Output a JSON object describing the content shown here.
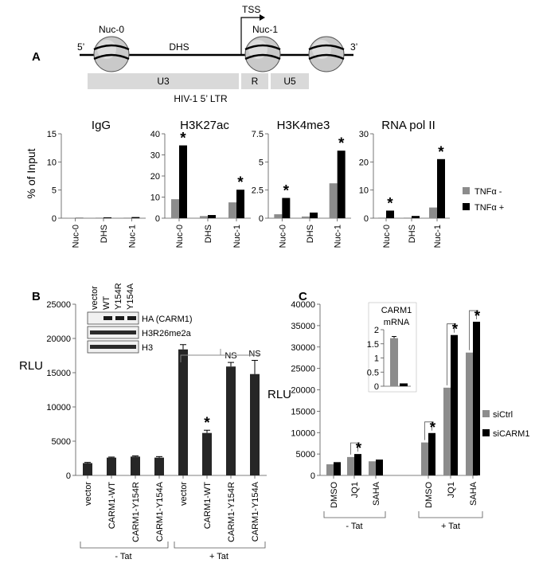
{
  "panels": {
    "A": "A",
    "B": "B",
    "C": "C"
  },
  "diagram": {
    "five_prime": "5’",
    "three_prime": "3’",
    "nucleosomes": [
      "Nuc-0",
      "Nuc-1"
    ],
    "dhs": "DHS",
    "tss": "TSS",
    "segments": [
      "U3",
      "R",
      "U5"
    ],
    "ltr_label": "HIV-1 5’ LTR"
  },
  "colors": {
    "gray": "#8c8c8c",
    "black": "#000000"
  },
  "chart_data": [
    {
      "type": "bar",
      "title": "IgG",
      "ylabel": "% of Input",
      "ylim": [
        0,
        15
      ],
      "yticks": [
        0,
        5,
        10,
        15
      ],
      "categories": [
        "Nuc-0",
        "DHS",
        "Nuc-1"
      ],
      "series": [
        {
          "name": "TNFα -",
          "values": [
            0.05,
            0.1,
            0.1
          ]
        },
        {
          "name": "TNFα +",
          "values": [
            0.05,
            0.15,
            0.2
          ]
        }
      ],
      "significant": [],
      "legend": "right"
    },
    {
      "type": "bar",
      "title": "H3K27ac",
      "ylim": [
        0,
        40
      ],
      "yticks": [
        0,
        10,
        20,
        30,
        40
      ],
      "categories": [
        "Nuc-0",
        "DHS",
        "Nuc-1"
      ],
      "series": [
        {
          "name": "TNFα -",
          "values": [
            9,
            1,
            7.5
          ]
        },
        {
          "name": "TNFα +",
          "values": [
            34.5,
            1.5,
            13.5
          ]
        }
      ],
      "significant": [
        "Nuc-0",
        "Nuc-1"
      ]
    },
    {
      "type": "bar",
      "title": "H3K4me3",
      "ylim": [
        0,
        7.5
      ],
      "yticks": [
        0,
        2.5,
        5,
        7.5
      ],
      "categories": [
        "Nuc-0",
        "DHS",
        "Nuc-1"
      ],
      "series": [
        {
          "name": "TNFα -",
          "values": [
            0.35,
            0.15,
            3.1
          ]
        },
        {
          "name": "TNFα +",
          "values": [
            1.8,
            0.5,
            6.0
          ]
        }
      ],
      "significant": [
        "Nuc-0",
        "Nuc-1"
      ]
    },
    {
      "type": "bar",
      "title": "RNA pol II",
      "ylim": [
        0,
        30
      ],
      "yticks": [
        0,
        10,
        20,
        30
      ],
      "categories": [
        "Nuc-0",
        "DHS",
        "Nuc-1"
      ],
      "series": [
        {
          "name": "TNFα -",
          "values": [
            0.2,
            0.2,
            3.8
          ]
        },
        {
          "name": "TNFα +",
          "values": [
            2.7,
            0.8,
            21
          ]
        }
      ],
      "significant": [
        "Nuc-0",
        "Nuc-1"
      ]
    },
    {
      "type": "bar",
      "ylabel": "RLU",
      "ylim": [
        0,
        25000
      ],
      "yticks": [
        0,
        5000,
        10000,
        15000,
        20000,
        25000
      ],
      "categories": [
        "vector",
        "CARM1-WT",
        "CARM1-Y154R",
        "CARM1-Y154A",
        "vector",
        "CARM1-WT",
        "CARM1-Y154R",
        "CARM1-Y154A"
      ],
      "values": [
        1800,
        2600,
        2750,
        2600,
        18400,
        6200,
        15900,
        14800
      ],
      "errors": [
        100,
        80,
        100,
        150,
        700,
        400,
        600,
        2000
      ],
      "groups": [
        {
          "label": "- Tat",
          "size": 4
        },
        {
          "label": "+ Tat",
          "size": 4
        }
      ],
      "significance": [
        "",
        "",
        "",
        "",
        "",
        "*",
        "NS",
        "NS"
      ],
      "blot": {
        "lanes": [
          "vector",
          "WT",
          "Y154R",
          "Y154A"
        ],
        "rows": [
          "HA (CARM1)",
          "H3R26me2a",
          "H3"
        ]
      }
    },
    {
      "type": "bar",
      "ylabel": "RLU",
      "ylim": [
        0,
        40000
      ],
      "yticks": [
        0,
        5000,
        10000,
        15000,
        20000,
        25000,
        30000,
        35000,
        40000
      ],
      "categories": [
        "DMSO",
        "JQ1",
        "SAHA",
        "DMSO",
        "JQ1",
        "SAHA"
      ],
      "groups": [
        {
          "label": "- Tat",
          "size": 3
        },
        {
          "label": "+ Tat",
          "size": 3
        }
      ],
      "series": [
        {
          "name": "siCtrl",
          "values": [
            2600,
            4300,
            3300,
            7700,
            20500,
            28700
          ]
        },
        {
          "name": "siCARM1",
          "values": [
            3100,
            5000,
            3700,
            9900,
            32800,
            35900
          ]
        }
      ],
      "significant": [
        "JQ1",
        "DMSO",
        "JQ1",
        "SAHA"
      ],
      "legend": "right"
    },
    {
      "type": "bar",
      "title": "CARM1\nmRNA",
      "ylim": [
        0,
        2
      ],
      "yticks": [
        0,
        0.5,
        1,
        1.5,
        2
      ],
      "categories": [
        "siCtrl",
        "siCARM1"
      ],
      "values": [
        1.7,
        0.1
      ]
    }
  ],
  "ytick_labels": {
    "a1": [
      "0",
      "5",
      "10",
      "15"
    ],
    "a2": [
      "0",
      "10",
      "20",
      "30",
      "40"
    ],
    "a3": [
      "0",
      "2.5",
      "5",
      "7.5"
    ],
    "a4": [
      "0",
      "10",
      "20",
      "30"
    ],
    "b": [
      "0",
      "5000",
      "10000",
      "15000",
      "20000",
      "25000"
    ],
    "c": [
      "0",
      "5000",
      "10000",
      "15000",
      "20000",
      "25000",
      "30000",
      "35000",
      "40000"
    ],
    "inset": [
      "0",
      "0.5",
      "1",
      "1.5",
      "2"
    ]
  },
  "titles": {
    "a1": "IgG",
    "a2": "H3K27ac",
    "a3": "H3K4me3",
    "a4": "RNA pol II",
    "inset_1": "CARM1",
    "inset_2": "mRNA"
  },
  "ylabels": {
    "a": "% of Input",
    "b": "RLU",
    "c": "RLU"
  },
  "legend_a": [
    "TNFα -",
    "TNFα +"
  ],
  "legend_c": [
    "siCtrl",
    "siCARM1"
  ],
  "categories_a": [
    "Nuc-0",
    "DHS",
    "Nuc-1"
  ],
  "categories_b": [
    "vector",
    "CARM1-WT",
    "CARM1-Y154R",
    "CARM1-Y154A",
    "vector",
    "CARM1-WT",
    "CARM1-Y154R",
    "CARM1-Y154A"
  ],
  "categories_c": [
    "DMSO",
    "JQ1",
    "SAHA",
    "DMSO",
    "JQ1",
    "SAHA"
  ],
  "groups": {
    "minus_tat": "- Tat",
    "plus_tat": "+ Tat"
  },
  "blot": {
    "lanes": [
      "vector",
      "WT",
      "Y154R",
      "Y154A"
    ],
    "rows": [
      "HA (CARM1)",
      "H3R26me2a",
      "H3"
    ]
  },
  "sig": {
    "star": "*",
    "ns": "NS"
  }
}
